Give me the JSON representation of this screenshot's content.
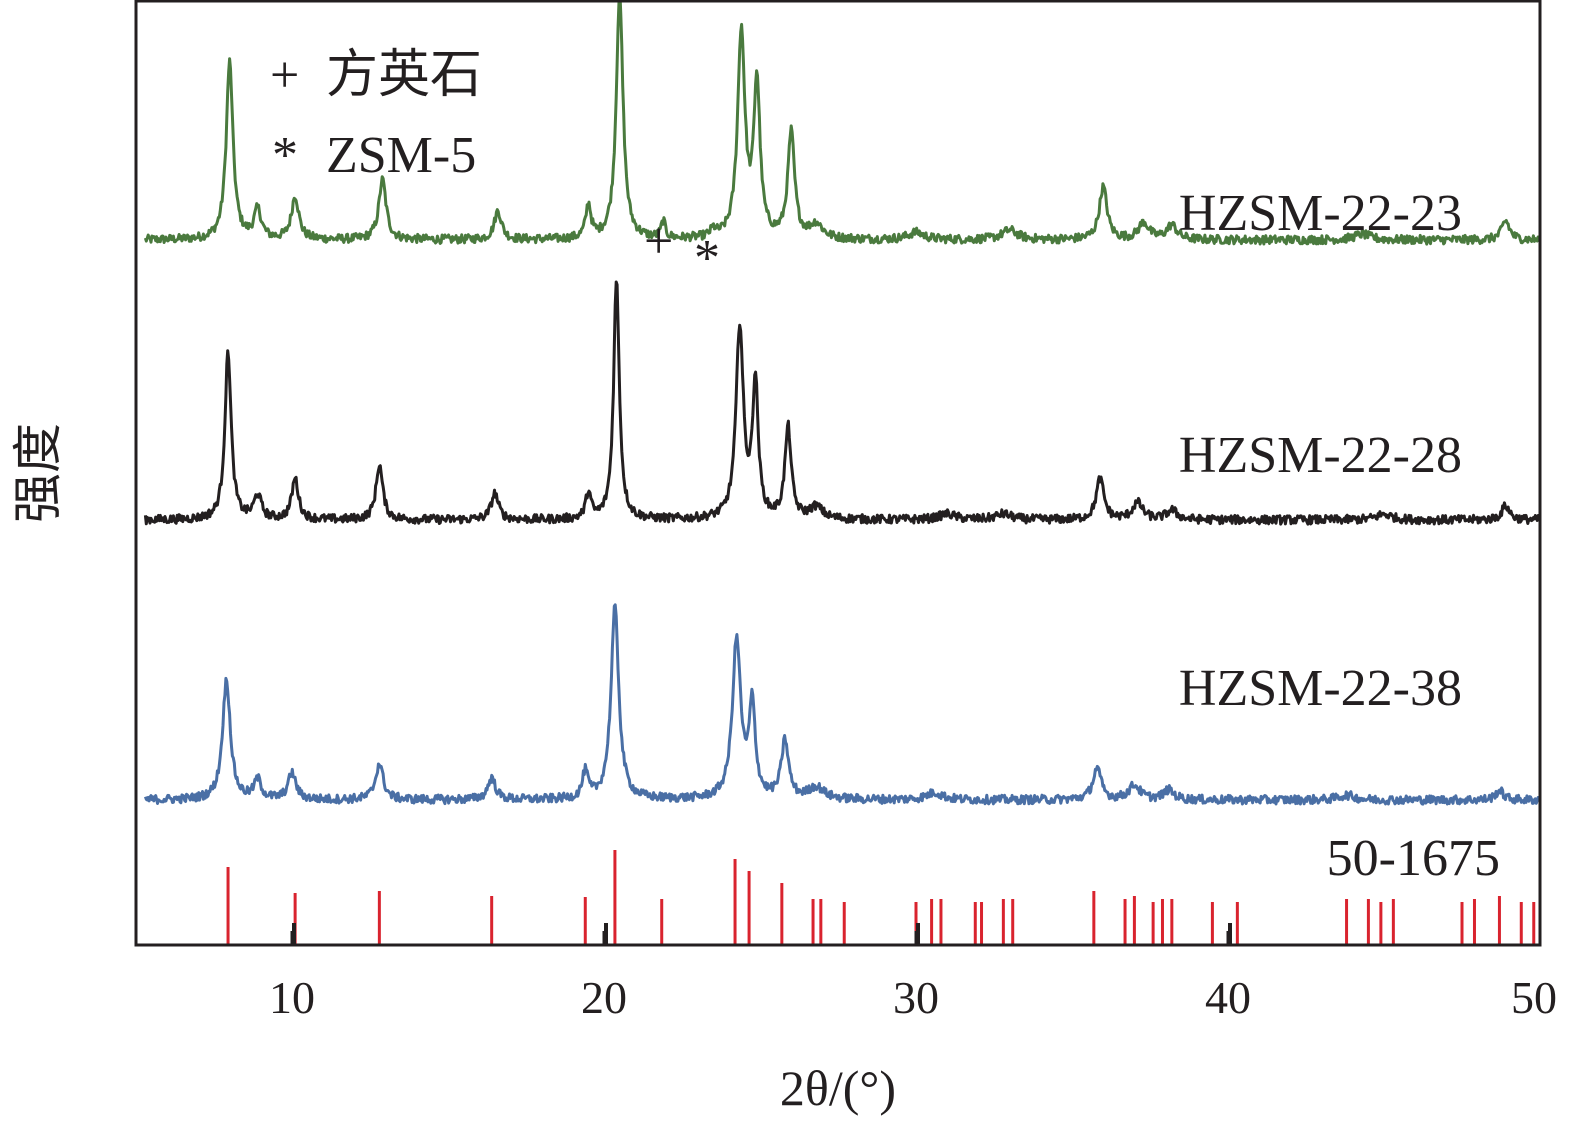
{
  "chart_data": {
    "type": "line",
    "title": "",
    "xlabel": "2θ/(°)",
    "ylabel": "强度",
    "xlim": [
      5,
      50
    ],
    "x_ticks": [
      10,
      20,
      30,
      40,
      50
    ],
    "x_tick_labels": [
      "10",
      "20",
      "30",
      "40",
      "50"
    ],
    "y_ticks": [],
    "grid": false,
    "stacked_offset": true,
    "legend": [
      {
        "symbol": "+",
        "label": "方英石"
      },
      {
        "symbol": "*",
        "label": "ZSM-5"
      }
    ],
    "annotations": [
      {
        "symbol": "+",
        "x": 21.9,
        "series": "HZSM-22-23"
      },
      {
        "symbol": "*",
        "x": 23.5,
        "series": "HZSM-22-23"
      }
    ],
    "series": [
      {
        "name": "HZSM-22-23",
        "color": "#4a7a3e",
        "baseline": 5.0,
        "peaks": [
          {
            "x": 8.0,
            "h": 3.7,
            "w": 0.13
          },
          {
            "x": 8.9,
            "h": 0.6,
            "w": 0.14
          },
          {
            "x": 10.1,
            "h": 0.9,
            "w": 0.14
          },
          {
            "x": 12.9,
            "h": 1.25,
            "w": 0.14
          },
          {
            "x": 16.6,
            "h": 0.6,
            "w": 0.14
          },
          {
            "x": 19.5,
            "h": 0.7,
            "w": 0.1
          },
          {
            "x": 20.5,
            "h": 5.1,
            "w": 0.13
          },
          {
            "x": 21.9,
            "h": 0.35,
            "w": 0.08
          },
          {
            "x": 23.5,
            "h": 0.15,
            "w": 0.1
          },
          {
            "x": 24.4,
            "h": 4.3,
            "w": 0.14
          },
          {
            "x": 24.9,
            "h": 3.2,
            "w": 0.12
          },
          {
            "x": 26.0,
            "h": 2.2,
            "w": 0.13
          },
          {
            "x": 26.8,
            "h": 0.3,
            "w": 0.25
          },
          {
            "x": 30.0,
            "h": 0.15,
            "w": 0.3
          },
          {
            "x": 33.0,
            "h": 0.2,
            "w": 0.3
          },
          {
            "x": 36.0,
            "h": 1.1,
            "w": 0.15
          },
          {
            "x": 37.3,
            "h": 0.35,
            "w": 0.2
          },
          {
            "x": 38.2,
            "h": 0.3,
            "w": 0.2
          },
          {
            "x": 44.3,
            "h": 0.12,
            "w": 0.3
          },
          {
            "x": 48.9,
            "h": 0.4,
            "w": 0.15
          }
        ]
      },
      {
        "name": "HZSM-22-28",
        "color": "#231f20",
        "baseline": 0.0,
        "peaks": [
          {
            "x": 7.95,
            "h": 3.5,
            "w": 0.12
          },
          {
            "x": 8.9,
            "h": 0.5,
            "w": 0.14
          },
          {
            "x": 10.1,
            "h": 0.85,
            "w": 0.13
          },
          {
            "x": 12.8,
            "h": 1.15,
            "w": 0.13
          },
          {
            "x": 16.5,
            "h": 0.55,
            "w": 0.14
          },
          {
            "x": 19.5,
            "h": 0.55,
            "w": 0.1
          },
          {
            "x": 20.4,
            "h": 5.0,
            "w": 0.11
          },
          {
            "x": 24.35,
            "h": 4.0,
            "w": 0.14
          },
          {
            "x": 24.85,
            "h": 2.8,
            "w": 0.11
          },
          {
            "x": 25.9,
            "h": 1.9,
            "w": 0.12
          },
          {
            "x": 26.8,
            "h": 0.25,
            "w": 0.25
          },
          {
            "x": 31.0,
            "h": 0.12,
            "w": 0.3
          },
          {
            "x": 32.8,
            "h": 0.12,
            "w": 0.3
          },
          {
            "x": 35.9,
            "h": 0.85,
            "w": 0.15
          },
          {
            "x": 37.1,
            "h": 0.35,
            "w": 0.2
          },
          {
            "x": 38.2,
            "h": 0.2,
            "w": 0.2
          },
          {
            "x": 45.0,
            "h": 0.12,
            "w": 0.3
          },
          {
            "x": 48.9,
            "h": 0.3,
            "w": 0.15
          }
        ]
      },
      {
        "name": "HZSM-22-38",
        "color": "#4a6fa5",
        "baseline": -5.0,
        "peaks": [
          {
            "x": 7.9,
            "h": 2.5,
            "w": 0.15
          },
          {
            "x": 8.9,
            "h": 0.4,
            "w": 0.14
          },
          {
            "x": 10.0,
            "h": 0.55,
            "w": 0.15
          },
          {
            "x": 12.8,
            "h": 0.75,
            "w": 0.15
          },
          {
            "x": 16.4,
            "h": 0.45,
            "w": 0.15
          },
          {
            "x": 19.4,
            "h": 0.55,
            "w": 0.11
          },
          {
            "x": 20.35,
            "h": 4.0,
            "w": 0.15
          },
          {
            "x": 24.25,
            "h": 3.3,
            "w": 0.16
          },
          {
            "x": 24.75,
            "h": 1.9,
            "w": 0.12
          },
          {
            "x": 25.8,
            "h": 1.2,
            "w": 0.14
          },
          {
            "x": 26.8,
            "h": 0.25,
            "w": 0.3
          },
          {
            "x": 30.6,
            "h": 0.15,
            "w": 0.3
          },
          {
            "x": 35.8,
            "h": 0.65,
            "w": 0.16
          },
          {
            "x": 37.0,
            "h": 0.3,
            "w": 0.22
          },
          {
            "x": 38.1,
            "h": 0.2,
            "w": 0.2
          },
          {
            "x": 43.8,
            "h": 0.1,
            "w": 0.3
          },
          {
            "x": 48.7,
            "h": 0.2,
            "w": 0.15
          }
        ]
      }
    ],
    "reference_pattern": {
      "name": "50-1675",
      "color": "#d9232e",
      "minor_color": "#231f20",
      "lines": [
        {
          "x": 7.95,
          "i": 0.78
        },
        {
          "x": 10.1,
          "i": 0.52
        },
        {
          "x": 12.8,
          "i": 0.54
        },
        {
          "x": 16.4,
          "i": 0.49
        },
        {
          "x": 19.4,
          "i": 0.48
        },
        {
          "x": 20.35,
          "i": 0.95
        },
        {
          "x": 21.85,
          "i": 0.46
        },
        {
          "x": 24.2,
          "i": 0.86
        },
        {
          "x": 24.65,
          "i": 0.74
        },
        {
          "x": 25.7,
          "i": 0.62
        },
        {
          "x": 26.7,
          "i": 0.46
        },
        {
          "x": 26.95,
          "i": 0.46
        },
        {
          "x": 27.7,
          "i": 0.43
        },
        {
          "x": 30.0,
          "i": 0.43
        },
        {
          "x": 30.5,
          "i": 0.46
        },
        {
          "x": 30.8,
          "i": 0.46
        },
        {
          "x": 31.9,
          "i": 0.43
        },
        {
          "x": 32.1,
          "i": 0.43
        },
        {
          "x": 32.8,
          "i": 0.46
        },
        {
          "x": 33.1,
          "i": 0.46
        },
        {
          "x": 35.7,
          "i": 0.54
        },
        {
          "x": 36.7,
          "i": 0.46
        },
        {
          "x": 37.0,
          "i": 0.49
        },
        {
          "x": 37.6,
          "i": 0.43
        },
        {
          "x": 37.9,
          "i": 0.46
        },
        {
          "x": 38.2,
          "i": 0.46
        },
        {
          "x": 39.5,
          "i": 0.43
        },
        {
          "x": 40.3,
          "i": 0.43
        },
        {
          "x": 43.8,
          "i": 0.46
        },
        {
          "x": 44.5,
          "i": 0.46
        },
        {
          "x": 44.9,
          "i": 0.43
        },
        {
          "x": 45.3,
          "i": 0.46
        },
        {
          "x": 47.5,
          "i": 0.43
        },
        {
          "x": 47.9,
          "i": 0.46
        },
        {
          "x": 48.7,
          "i": 0.49
        },
        {
          "x": 49.4,
          "i": 0.43
        },
        {
          "x": 49.8,
          "i": 0.43
        }
      ],
      "minor_lines": [
        {
          "x": 10.0,
          "i": 0.22
        },
        {
          "x": 20.0,
          "i": 0.22
        },
        {
          "x": 30.0,
          "i": 0.22
        },
        {
          "x": 40.0,
          "i": 0.22
        }
      ]
    }
  }
}
